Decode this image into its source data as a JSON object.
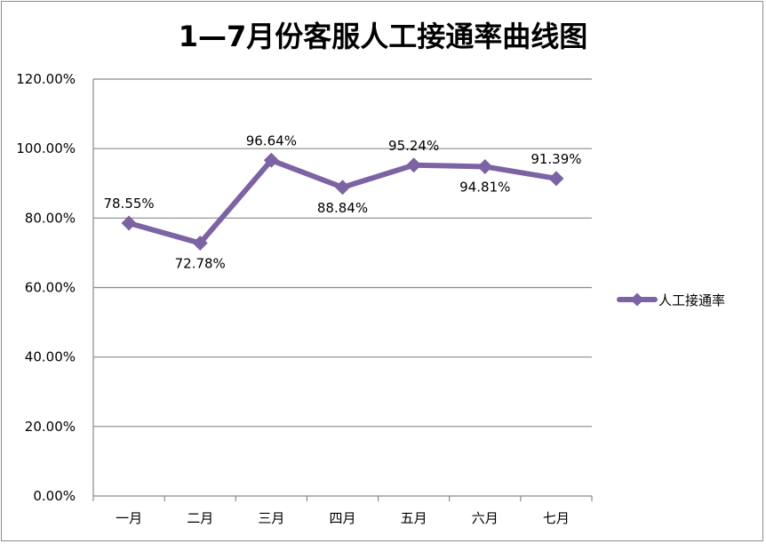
{
  "chart_data": {
    "type": "line",
    "title": "1—7月份客服人工接通率曲线图",
    "xlabel": "",
    "ylabel": "",
    "categories": [
      "一月",
      "二月",
      "三月",
      "四月",
      "五月",
      "六月",
      "七月"
    ],
    "ylim": [
      0,
      120
    ],
    "yticks": [
      0,
      20,
      40,
      60,
      80,
      100,
      120
    ],
    "ytick_labels": [
      "0.00%",
      "20.00%",
      "40.00%",
      "60.00%",
      "80.00%",
      "100.00%",
      "120.00%"
    ],
    "series": [
      {
        "name": "人工接通率",
        "values": [
          78.55,
          72.78,
          96.64,
          88.84,
          95.24,
          94.81,
          91.39
        ],
        "value_labels": [
          "78.55%",
          "72.78%",
          "96.64%",
          "88.84%",
          "95.24%",
          "94.81%",
          "91.39%"
        ],
        "label_positions": [
          "above",
          "below",
          "above",
          "below",
          "above",
          "below",
          "above"
        ],
        "color": "#7b63a4",
        "marker": "diamond"
      }
    ],
    "grid": true,
    "legend": "right"
  }
}
